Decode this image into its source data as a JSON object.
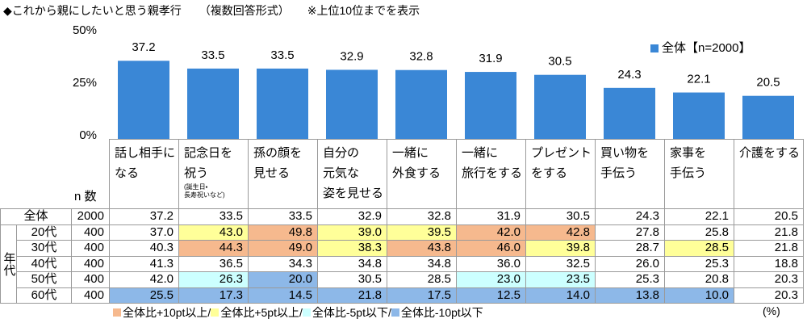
{
  "chart_data": {
    "type": "bar",
    "title": "◆これから親にしたいと思う親孝行",
    "subtitle": "（複数回答形式）",
    "note": "※上位10位までを表示",
    "categories": [
      "話し相手に\nなる",
      "記念日を\n祝う",
      "孫の顔を\n見せる",
      "自分の\n元気な\n姿を見せる",
      "一緒に\n外食する",
      "一緒に\n旅行をする",
      "プレゼント\nをする",
      "買い物を\n手伝う",
      "家事を\n手伝う",
      "介護をする"
    ],
    "category_notes": [
      null,
      "(誕生日・\n長寿祝いなど)",
      null,
      null,
      null,
      null,
      null,
      null,
      null,
      null
    ],
    "series": [
      {
        "name": "全体【n=2000】",
        "color": "#3a87d6",
        "values": [
          37.2,
          33.5,
          33.5,
          32.9,
          32.8,
          31.9,
          30.5,
          24.3,
          22.1,
          20.5
        ]
      }
    ],
    "ylim": [
      0,
      50
    ],
    "yticks": [
      {
        "value": 0,
        "label": "0%"
      },
      {
        "value": 25,
        "label": "25%"
      },
      {
        "value": 50,
        "label": "50%"
      }
    ],
    "legend_position": "top-right"
  },
  "table": {
    "n_header": "n 数",
    "group_label": "年代",
    "rows": [
      {
        "label": "全体",
        "n": "2000",
        "values": [
          "37.2",
          "33.5",
          "33.5",
          "32.9",
          "32.8",
          "31.9",
          "30.5",
          "24.3",
          "22.1",
          "20.5"
        ],
        "levels": [
          null,
          null,
          null,
          null,
          null,
          null,
          null,
          null,
          null,
          null
        ]
      },
      {
        "label": "20代",
        "n": "400",
        "values": [
          "37.0",
          "43.0",
          "49.8",
          "39.0",
          "39.5",
          "42.0",
          "42.8",
          "27.8",
          "25.8",
          "21.8"
        ],
        "levels": [
          null,
          1,
          0,
          1,
          1,
          0,
          0,
          null,
          null,
          null
        ]
      },
      {
        "label": "30代",
        "n": "400",
        "values": [
          "40.3",
          "44.3",
          "49.0",
          "38.3",
          "43.8",
          "46.0",
          "39.8",
          "28.7",
          "28.5",
          "21.8"
        ],
        "levels": [
          null,
          0,
          0,
          1,
          0,
          0,
          1,
          null,
          1,
          null
        ]
      },
      {
        "label": "40代",
        "n": "400",
        "values": [
          "41.3",
          "36.5",
          "34.3",
          "34.8",
          "34.8",
          "36.0",
          "32.5",
          "26.0",
          "25.3",
          "18.8"
        ],
        "levels": [
          null,
          null,
          null,
          null,
          null,
          null,
          null,
          null,
          null,
          null
        ]
      },
      {
        "label": "50代",
        "n": "400",
        "values": [
          "42.0",
          "26.3",
          "20.0",
          "30.5",
          "28.5",
          "23.0",
          "23.5",
          "25.3",
          "20.8",
          "20.3"
        ],
        "levels": [
          null,
          2,
          3,
          null,
          null,
          2,
          2,
          null,
          null,
          null
        ]
      },
      {
        "label": "60代",
        "n": "400",
        "values": [
          "25.5",
          "17.3",
          "14.5",
          "21.8",
          "17.5",
          "12.5",
          "14.0",
          "13.8",
          "10.0",
          "20.3"
        ],
        "levels": [
          3,
          3,
          3,
          3,
          3,
          3,
          3,
          3,
          3,
          null
        ]
      }
    ],
    "legend": [
      {
        "label": "全体比+10pt以上/",
        "color": "#f6b98e"
      },
      {
        "label": "全体比+5pt以上/",
        "color": "#ffff99"
      },
      {
        "label": "全体比-5pt以下/",
        "color": "#ccffff"
      },
      {
        "label": "全体比-10pt以下",
        "color": "#8db8e8"
      }
    ],
    "unit": "(%)"
  }
}
